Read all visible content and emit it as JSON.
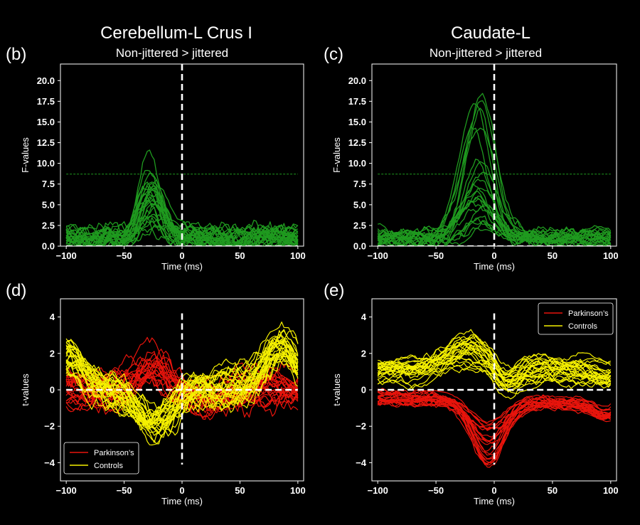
{
  "colors": {
    "background": "#000000",
    "axes": "#ffffff",
    "green": "#1f9a1f",
    "red": "#e8140c",
    "yellow": "#f5f000",
    "threshold": "#1f9a1f"
  },
  "titles": {
    "left_title": "Cerebellum-L Crus I",
    "left_subtitle": "Non-jittered > jittered",
    "right_title": "Caudate-L",
    "right_subtitle": "Non-jittered > jittered"
  },
  "chart_data": [
    {
      "id": "b",
      "panel_label": "(b)",
      "type": "line",
      "xlabel": "Time (ms)",
      "ylabel": "F-values",
      "xlim": [
        -105,
        105
      ],
      "ylim": [
        0,
        22
      ],
      "xticks": [
        -100,
        -50,
        0,
        50,
        100
      ],
      "xtick_labels": [
        "−100",
        "−50",
        "0",
        "50",
        "100"
      ],
      "yticks": [
        0,
        2.5,
        5,
        7.5,
        10,
        12.5,
        15,
        17.5,
        20
      ],
      "ytick_labels": [
        "0.0",
        "2.5",
        "5.0",
        "7.5",
        "10.0",
        "12.5",
        "15.0",
        "17.5",
        "20.0"
      ],
      "threshold": 8.7,
      "series_summary": {
        "color": "green",
        "count": 28,
        "peak_time_ms": -27,
        "peak_max": 12.0,
        "background_max": 4.0
      }
    },
    {
      "id": "c",
      "panel_label": "(c)",
      "type": "line",
      "xlabel": "Time (ms)",
      "ylabel": "F-values",
      "xlim": [
        -105,
        105
      ],
      "ylim": [
        0,
        22
      ],
      "xticks": [
        -100,
        -50,
        0,
        50,
        100
      ],
      "xtick_labels": [
        "−100",
        "−50",
        "0",
        "50",
        "100"
      ],
      "yticks": [
        0,
        2.5,
        5,
        7.5,
        10,
        12.5,
        15,
        17.5,
        20
      ],
      "ytick_labels": [
        "0.0",
        "2.5",
        "5.0",
        "7.5",
        "10.0",
        "12.5",
        "15.0",
        "17.5",
        "20.0"
      ],
      "threshold": 8.7,
      "series_summary": {
        "color": "green",
        "count": 24,
        "peak_time_ms": -15,
        "peak_max": 19.5,
        "background_max": 3.0
      }
    },
    {
      "id": "d",
      "panel_label": "(d)",
      "type": "line",
      "xlabel": "Time (ms)",
      "ylabel": "t-values",
      "xlim": [
        -105,
        105
      ],
      "ylim": [
        -5,
        5
      ],
      "xticks": [
        -100,
        -50,
        0,
        50,
        100
      ],
      "xtick_labels": [
        "−100",
        "−50",
        "0",
        "50",
        "100"
      ],
      "yticks": [
        -4,
        -2,
        0,
        2,
        4
      ],
      "ytick_labels": [
        "−4",
        "−2",
        "0",
        "2",
        "4"
      ],
      "legend": [
        {
          "label": "Parkinson’s",
          "color": "red"
        },
        {
          "label": "Controls",
          "color": "yellow"
        }
      ],
      "legend_position": "bottom-left",
      "series_summary": {
        "red_count": 22,
        "yellow_count": 28
      }
    },
    {
      "id": "e",
      "panel_label": "(e)",
      "type": "line",
      "xlabel": "Time (ms)",
      "ylabel": "t-values",
      "xlim": [
        -105,
        105
      ],
      "ylim": [
        -5,
        5
      ],
      "xticks": [
        -100,
        -50,
        0,
        50,
        100
      ],
      "xtick_labels": [
        "−100",
        "−50",
        "0",
        "50",
        "100"
      ],
      "yticks": [
        -4,
        -2,
        0,
        2,
        4
      ],
      "ytick_labels": [
        "−4",
        "−2",
        "0",
        "2",
        "4"
      ],
      "legend": [
        {
          "label": "Parkinson’s",
          "color": "red"
        },
        {
          "label": "Controls",
          "color": "yellow"
        }
      ],
      "legend_position": "top-right",
      "series_summary": {
        "red_count": 24,
        "yellow_count": 24
      }
    }
  ]
}
